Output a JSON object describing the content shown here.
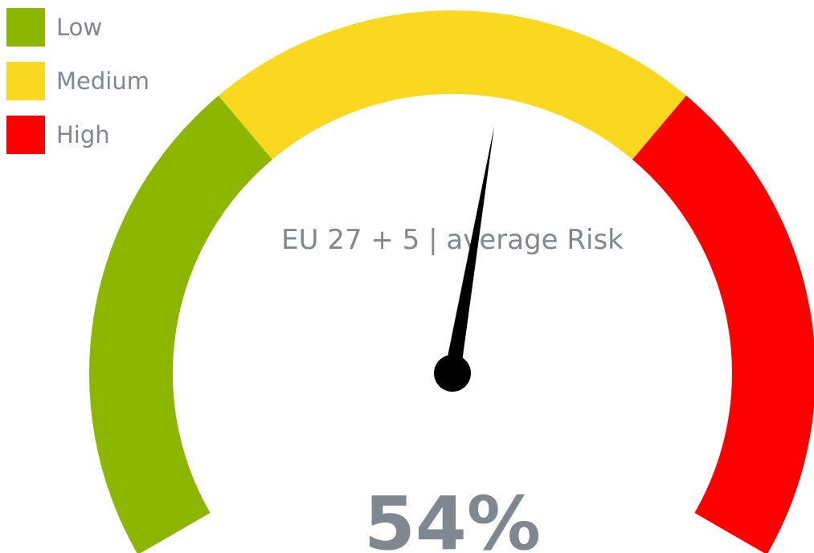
{
  "chart_data": {
    "type": "gauge",
    "title": "EU 27 + 5 | average Risk",
    "ylim": [
      0,
      100
    ],
    "bands": [
      {
        "name": "Low",
        "from": 0,
        "to": 33.3,
        "color": "#8db600"
      },
      {
        "name": "Medium",
        "from": 33.3,
        "to": 66.7,
        "color": "#fad81f"
      },
      {
        "name": "High",
        "from": 66.7,
        "to": 100,
        "color": "#ff0000"
      }
    ],
    "values": [
      54
    ],
    "value_labels": [
      "54%"
    ],
    "needle_color": "#000000"
  }
}
